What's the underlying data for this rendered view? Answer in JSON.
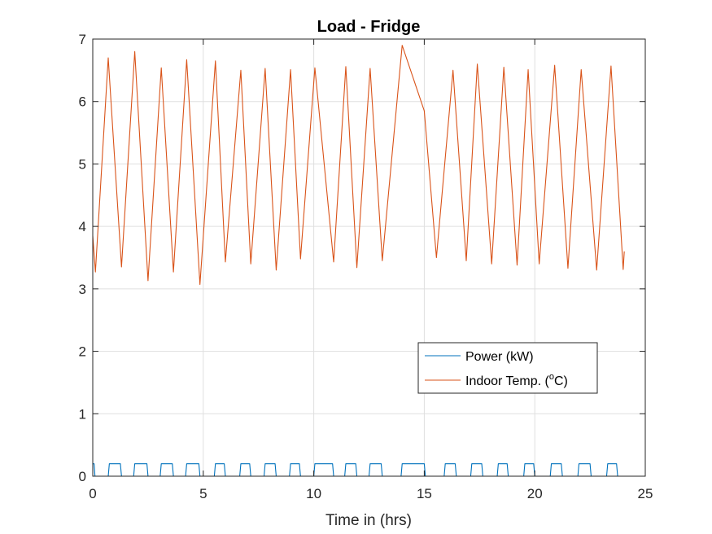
{
  "chart_data": {
    "type": "line",
    "title": "Load - Fridge",
    "xlabel": "Time in (hrs)",
    "ylabel": "",
    "xlim": [
      0,
      25
    ],
    "ylim": [
      0,
      7
    ],
    "xticks": [
      0,
      5,
      10,
      15,
      20,
      25
    ],
    "yticks": [
      0,
      1,
      2,
      3,
      4,
      5,
      6,
      7
    ],
    "grid": true,
    "legend_position": "inside-lower-right",
    "series": [
      {
        "name": "Power (kW)",
        "color": "#0072BD",
        "x": [
          0,
          0.06,
          0.1,
          0.15,
          0.7,
          0.75,
          1.25,
          1.3,
          1.85,
          1.9,
          2.45,
          2.5,
          3.05,
          3.1,
          3.6,
          3.65,
          4.2,
          4.25,
          4.8,
          4.85,
          5.5,
          5.55,
          5.95,
          6.0,
          6.65,
          6.7,
          7.1,
          7.15,
          7.75,
          7.8,
          8.25,
          8.3,
          8.9,
          8.95,
          9.35,
          9.4,
          10.0,
          10.05,
          10.85,
          10.9,
          11.4,
          11.45,
          11.9,
          11.95,
          12.5,
          12.55,
          13.05,
          13.1,
          13.95,
          14.0,
          15.0,
          15.05,
          15.9,
          15.95,
          16.4,
          16.45,
          17.1,
          17.15,
          17.6,
          17.65,
          18.3,
          18.35,
          18.75,
          18.8,
          19.5,
          19.55,
          19.95,
          20.0,
          20.7,
          20.75,
          21.2,
          21.25,
          21.95,
          22.0,
          22.5,
          22.55,
          23.25,
          23.3,
          23.7,
          23.75,
          24.0
        ],
        "y": [
          0.2,
          0.2,
          0,
          0,
          0,
          0.2,
          0.2,
          0,
          0,
          0.2,
          0.2,
          0,
          0,
          0.2,
          0.2,
          0,
          0,
          0.2,
          0.2,
          0,
          0,
          0.2,
          0.2,
          0,
          0,
          0.2,
          0.2,
          0,
          0,
          0.2,
          0.2,
          0,
          0,
          0.2,
          0.2,
          0,
          0,
          0.2,
          0.2,
          0,
          0,
          0.2,
          0.2,
          0,
          0,
          0.2,
          0.2,
          0,
          0,
          0.2,
          0.2,
          0,
          0,
          0.2,
          0.2,
          0,
          0,
          0.2,
          0.2,
          0,
          0,
          0.2,
          0.2,
          0,
          0,
          0.2,
          0.2,
          0,
          0,
          0.2,
          0.2,
          0,
          0,
          0.2,
          0.2,
          0,
          0,
          0.2,
          0.2,
          0,
          0
        ]
      },
      {
        "name": "Indoor Temp. (°C)",
        "color": "#D95319",
        "x": [
          0,
          0.12,
          0.7,
          1.3,
          1.9,
          2.5,
          3.1,
          3.65,
          4.25,
          4.85,
          5.55,
          6.0,
          6.7,
          7.15,
          7.8,
          8.3,
          8.95,
          9.4,
          10.05,
          10.9,
          11.45,
          11.95,
          12.55,
          13.1,
          14.0,
          15.0,
          15.55,
          16.3,
          16.9,
          17.4,
          18.05,
          18.6,
          19.2,
          19.7,
          20.2,
          20.9,
          21.5,
          22.1,
          22.8,
          23.45,
          24.0,
          24.05
        ],
        "y": [
          3.85,
          3.27,
          6.7,
          3.35,
          6.8,
          3.13,
          6.54,
          3.27,
          6.67,
          3.07,
          6.65,
          3.43,
          6.5,
          3.4,
          6.53,
          3.3,
          6.51,
          3.48,
          6.54,
          3.43,
          6.56,
          3.34,
          6.53,
          3.45,
          6.9,
          5.85,
          3.5,
          6.5,
          3.45,
          6.6,
          3.4,
          6.55,
          3.38,
          6.51,
          3.4,
          6.58,
          3.33,
          6.51,
          3.3,
          6.57,
          3.31,
          3.6
        ]
      }
    ]
  }
}
